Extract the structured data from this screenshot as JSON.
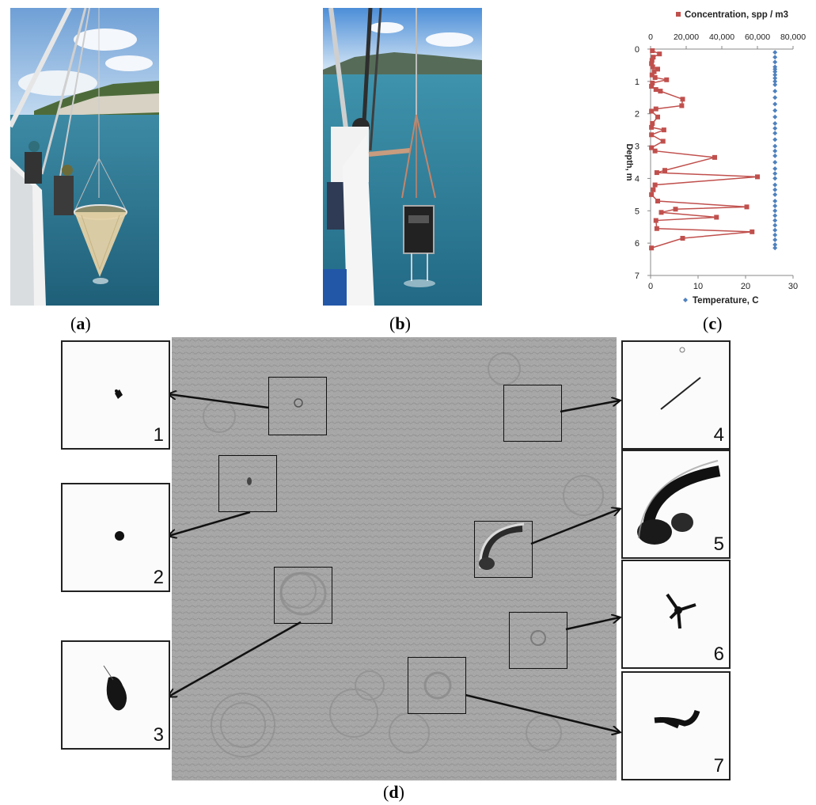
{
  "figure": {
    "panel_labels": {
      "a": "a",
      "b": "b",
      "c": "c",
      "d": "d"
    },
    "inset_numbers": [
      "1",
      "2",
      "3",
      "4",
      "5",
      "6",
      "7"
    ]
  },
  "colors": {
    "sea": "#3f8aa3",
    "sky": "#a9c9ea",
    "concentration": "#c0504d",
    "temperature": "#4f81bd",
    "hologram": "#9c9c9c"
  },
  "chart_data": {
    "type": "scatter",
    "title": "",
    "ylabel": "Depth, m",
    "ylim": [
      0,
      7
    ],
    "yticks": [
      "0",
      "1",
      "2",
      "3",
      "4",
      "5",
      "6",
      "7"
    ],
    "x_top": {
      "label": "Concentration, spp / m3",
      "range": [
        0,
        80000
      ],
      "ticks": [
        "0",
        "20,000",
        "40,000",
        "60,000",
        "80,000"
      ]
    },
    "x_bottom": {
      "label": "Temperature, C",
      "range": [
        0,
        30
      ],
      "ticks": [
        "0",
        "10",
        "20",
        "30"
      ]
    },
    "series": [
      {
        "name": "Concentration, spp / m3",
        "marker": "square",
        "line": true,
        "points": [
          [
            0.05,
            1000
          ],
          [
            0.15,
            5000
          ],
          [
            0.25,
            1500
          ],
          [
            0.35,
            800
          ],
          [
            0.45,
            500
          ],
          [
            0.55,
            1200
          ],
          [
            0.62,
            4000
          ],
          [
            0.7,
            2000
          ],
          [
            0.8,
            800
          ],
          [
            0.88,
            2500
          ],
          [
            0.95,
            9000
          ],
          [
            1.05,
            1000
          ],
          [
            1.15,
            500
          ],
          [
            1.25,
            3000
          ],
          [
            1.3,
            5500
          ],
          [
            1.55,
            18000
          ],
          [
            1.75,
            17500
          ],
          [
            1.85,
            3000
          ],
          [
            1.92,
            500
          ],
          [
            2.1,
            4000
          ],
          [
            2.3,
            1000
          ],
          [
            2.42,
            500
          ],
          [
            2.5,
            7500
          ],
          [
            2.65,
            500
          ],
          [
            2.85,
            7000
          ],
          [
            3.05,
            500
          ],
          [
            3.15,
            2500
          ],
          [
            3.35,
            36000
          ],
          [
            3.75,
            8000
          ],
          [
            3.82,
            3500
          ],
          [
            3.95,
            60000
          ],
          [
            4.2,
            2500
          ],
          [
            4.35,
            1500
          ],
          [
            4.5,
            500
          ],
          [
            4.7,
            4000
          ],
          [
            4.88,
            54000
          ],
          [
            4.95,
            14000
          ],
          [
            5.05,
            6000
          ],
          [
            5.2,
            37000
          ],
          [
            5.3,
            3000
          ],
          [
            5.55,
            3500
          ],
          [
            5.65,
            57000
          ],
          [
            5.85,
            18000
          ],
          [
            6.15,
            500
          ]
        ]
      },
      {
        "name": "Temperature, C",
        "marker": "diamond",
        "line": false,
        "points": [
          [
            0.1,
            26.2
          ],
          [
            0.25,
            26.2
          ],
          [
            0.4,
            26.2
          ],
          [
            0.55,
            26.2
          ],
          [
            0.62,
            26.2
          ],
          [
            0.7,
            26.2
          ],
          [
            0.8,
            26.2
          ],
          [
            0.9,
            26.2
          ],
          [
            1.0,
            26.2
          ],
          [
            1.1,
            26.2
          ],
          [
            1.3,
            26.2
          ],
          [
            1.5,
            26.2
          ],
          [
            1.7,
            26.2
          ],
          [
            1.9,
            26.2
          ],
          [
            2.1,
            26.2
          ],
          [
            2.3,
            26.2
          ],
          [
            2.45,
            26.2
          ],
          [
            2.6,
            26.2
          ],
          [
            2.8,
            26.2
          ],
          [
            3.0,
            26.2
          ],
          [
            3.15,
            26.2
          ],
          [
            3.3,
            26.2
          ],
          [
            3.5,
            26.2
          ],
          [
            3.7,
            26.2
          ],
          [
            3.85,
            26.2
          ],
          [
            4.0,
            26.2
          ],
          [
            4.2,
            26.2
          ],
          [
            4.35,
            26.2
          ],
          [
            4.5,
            26.2
          ],
          [
            4.7,
            26.2
          ],
          [
            4.85,
            26.2
          ],
          [
            5.0,
            26.2
          ],
          [
            5.15,
            26.2
          ],
          [
            5.3,
            26.2
          ],
          [
            5.45,
            26.2
          ],
          [
            5.6,
            26.2
          ],
          [
            5.75,
            26.2
          ],
          [
            5.9,
            26.2
          ],
          [
            6.05,
            26.2
          ],
          [
            6.15,
            26.2
          ]
        ]
      }
    ]
  }
}
